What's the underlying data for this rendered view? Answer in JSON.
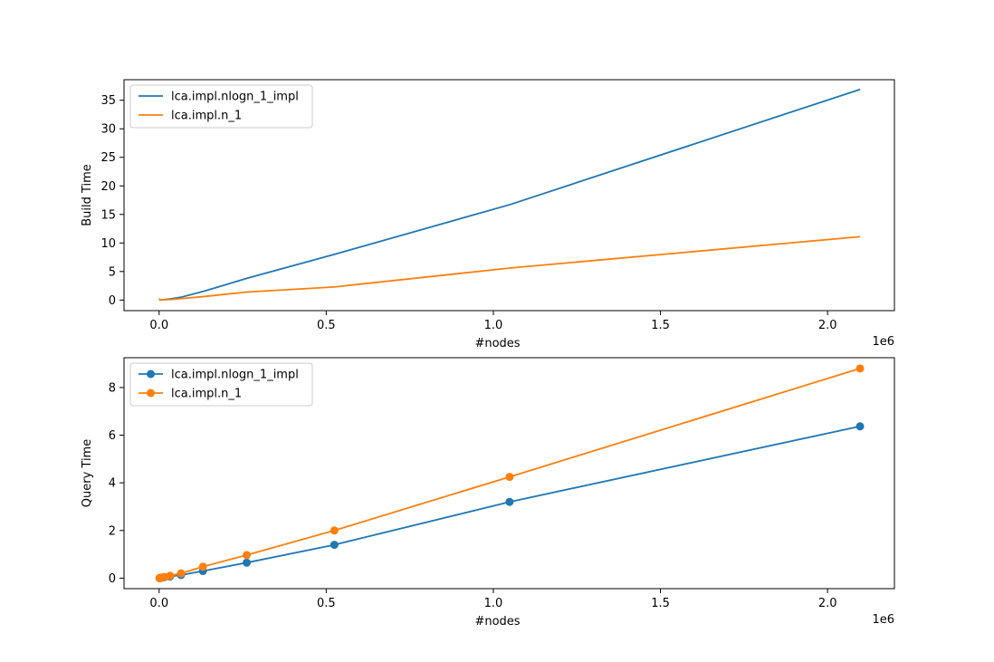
{
  "chart_data": [
    {
      "type": "line",
      "xlabel": "#nodes",
      "ylabel": "Build Time",
      "x_offset_label": "1e6",
      "markers": false,
      "legend_position": "upper-left",
      "xlim": [
        -0.105,
        2.2
      ],
      "ylim": [
        -1.85,
        38.6
      ],
      "x_ticks": [
        0.0,
        0.5,
        1.0,
        1.5,
        2.0
      ],
      "x_tick_labels": [
        "0.0",
        "0.5",
        "1.0",
        "1.5",
        "2.0"
      ],
      "y_ticks": [
        0,
        5,
        10,
        15,
        20,
        25,
        30,
        35
      ],
      "y_tick_labels": [
        "0",
        "5",
        "10",
        "15",
        "20",
        "25",
        "30",
        "35"
      ],
      "series": [
        {
          "name": "lca.impl.nlogn_1_impl",
          "color": "#1f77b4",
          "x": [
            0.001024,
            0.002048,
            0.004096,
            0.008192,
            0.016384,
            0.032768,
            0.065536,
            0.131072,
            0.262144,
            0.524288,
            1.048576,
            2.097152
          ],
          "y": [
            0.0,
            0.01,
            0.02,
            0.04,
            0.09,
            0.2,
            0.5,
            1.5,
            3.8,
            8.0,
            16.7,
            36.9
          ]
        },
        {
          "name": "lca.impl.n_1",
          "color": "#ff7f0e",
          "x": [
            0.001024,
            0.002048,
            0.004096,
            0.008192,
            0.016384,
            0.032768,
            0.065536,
            0.131072,
            0.262144,
            0.524288,
            1.048576,
            2.097152
          ],
          "y": [
            0.3,
            0.0,
            0.01,
            0.02,
            0.05,
            0.1,
            0.25,
            0.6,
            1.4,
            2.3,
            5.6,
            11.1
          ]
        }
      ]
    },
    {
      "type": "line",
      "xlabel": "#nodes",
      "ylabel": "Query Time",
      "x_offset_label": "1e6",
      "markers": true,
      "legend_position": "upper-left",
      "xlim": [
        -0.105,
        2.2
      ],
      "ylim": [
        -0.44,
        9.25
      ],
      "x_ticks": [
        0.0,
        0.5,
        1.0,
        1.5,
        2.0
      ],
      "x_tick_labels": [
        "0.0",
        "0.5",
        "1.0",
        "1.5",
        "2.0"
      ],
      "y_ticks": [
        0,
        2,
        4,
        6,
        8
      ],
      "y_tick_labels": [
        "0",
        "2",
        "4",
        "6",
        "8"
      ],
      "series": [
        {
          "name": "lca.impl.nlogn_1_impl",
          "color": "#1f77b4",
          "x": [
            0.001024,
            0.002048,
            0.004096,
            0.008192,
            0.016384,
            0.032768,
            0.065536,
            0.131072,
            0.262144,
            0.524288,
            1.048576,
            2.097152
          ],
          "y": [
            0.0,
            0.0,
            0.01,
            0.02,
            0.04,
            0.07,
            0.13,
            0.3,
            0.65,
            1.4,
            3.2,
            6.37
          ]
        },
        {
          "name": "lca.impl.n_1",
          "color": "#ff7f0e",
          "x": [
            0.001024,
            0.002048,
            0.004096,
            0.008192,
            0.016384,
            0.032768,
            0.065536,
            0.131072,
            0.262144,
            0.524288,
            1.048576,
            2.097152
          ],
          "y": [
            0.0,
            0.01,
            0.02,
            0.03,
            0.05,
            0.1,
            0.2,
            0.48,
            0.97,
            2.0,
            4.25,
            8.8
          ]
        }
      ]
    }
  ]
}
